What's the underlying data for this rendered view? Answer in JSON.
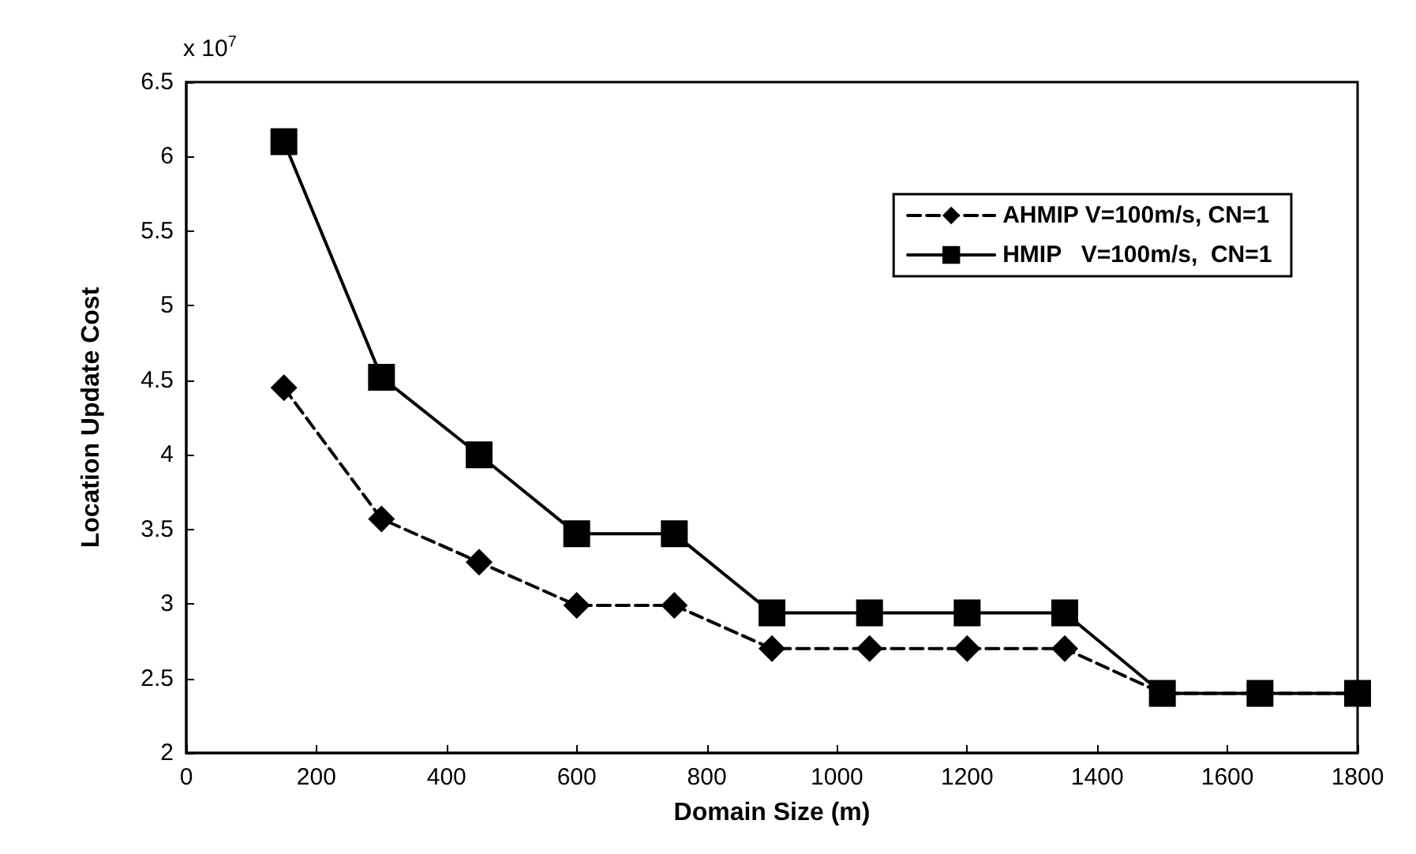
{
  "chart_data": {
    "type": "line",
    "xlabel": "Domain Size (m)",
    "ylabel": "Location Update Cost",
    "annotations": [
      "x 10$^{7}$"
    ],
    "x": [
      150,
      300,
      450,
      600,
      750,
      900,
      1050,
      1200,
      1350,
      1500,
      1650,
      1800
    ],
    "series": [
      {
        "name": "AHMIP V=100m/s, CN=1",
        "color": "#000000",
        "marker": "diamond",
        "line_style": "dashed",
        "values": [
          4.45,
          3.57,
          3.28,
          2.99,
          2.99,
          2.7,
          2.7,
          2.7,
          2.7,
          2.4,
          2.4,
          2.4
        ]
      },
      {
        "name": "HMIP   V=100m/s,  CN=1",
        "color": "#000000",
        "marker": "square",
        "line_style": "solid",
        "values": [
          6.1,
          4.52,
          4.0,
          3.47,
          3.47,
          2.94,
          2.94,
          2.94,
          2.94,
          2.4,
          2.4,
          2.4
        ]
      }
    ],
    "xlim": [
      0,
      1800
    ],
    "xticks": [
      0,
      200,
      400,
      600,
      800,
      1000,
      1200,
      1400,
      1600,
      1800
    ],
    "ylim": [
      2,
      6.5
    ],
    "yticks": [
      2,
      2.5,
      3,
      3.5,
      4,
      4.5,
      5,
      5.5,
      6,
      6.5
    ],
    "grid": false,
    "legend": "top right"
  }
}
